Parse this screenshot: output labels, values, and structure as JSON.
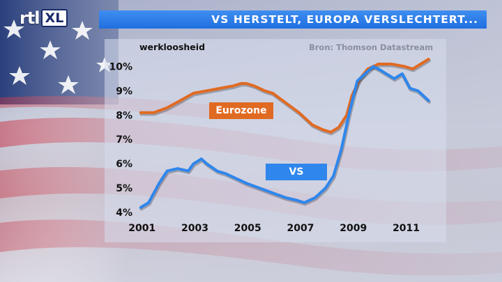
{
  "header": {
    "channel_logo_main": "rtl",
    "channel_logo_badge": "XL",
    "headline": "VS HERSTELT, EUROPA VERSLECHTERT..."
  },
  "colors": {
    "eurozone": "#e06a22",
    "vs": "#2f86ec",
    "title_bar": "#2a7ae8"
  },
  "chart_data": {
    "type": "line",
    "subtitle": "werkloosheid",
    "source": "Bron: Thomson Datastream",
    "ylim": [
      4,
      10.5
    ],
    "y_ticks": [
      "4%",
      "5%",
      "6%",
      "7%",
      "8%",
      "9%",
      "10%"
    ],
    "y_tick_values": [
      4,
      5,
      6,
      7,
      8,
      9,
      10
    ],
    "x_ticks": [
      "2001",
      "2003",
      "2005",
      "2007",
      "2009",
      "2011"
    ],
    "x_tick_values": [
      2001,
      2003,
      2005,
      2007,
      2009,
      2011
    ],
    "xlim": [
      2000.9,
      2012.2
    ],
    "grid": false,
    "series": [
      {
        "name": "Eurozone",
        "x": [
          2001.0,
          2001.5,
          2002.0,
          2002.5,
          2003.0,
          2003.5,
          2004.0,
          2004.5,
          2004.8,
          2005.0,
          2005.3,
          2005.7,
          2006.0,
          2006.5,
          2007.0,
          2007.5,
          2007.9,
          2008.2,
          2008.5,
          2008.8,
          2009.0,
          2009.3,
          2009.6,
          2010.0,
          2010.5,
          2011.0,
          2011.3,
          2011.6,
          2011.9
        ],
        "values": [
          8.1,
          8.1,
          8.3,
          8.6,
          8.9,
          9.0,
          9.1,
          9.2,
          9.3,
          9.3,
          9.2,
          9.0,
          8.9,
          8.5,
          8.1,
          7.6,
          7.4,
          7.3,
          7.5,
          8.0,
          8.8,
          9.5,
          9.9,
          10.1,
          10.1,
          10.0,
          9.9,
          10.1,
          10.3
        ]
      },
      {
        "name": "VS",
        "x": [
          2001.0,
          2001.3,
          2001.7,
          2002.0,
          2002.4,
          2002.8,
          2003.0,
          2003.3,
          2003.5,
          2003.9,
          2004.2,
          2004.6,
          2005.0,
          2005.5,
          2006.0,
          2006.5,
          2006.9,
          2007.2,
          2007.6,
          2008.0,
          2008.3,
          2008.6,
          2008.9,
          2009.2,
          2009.5,
          2009.8,
          2010.0,
          2010.3,
          2010.6,
          2010.9,
          2011.2,
          2011.5,
          2011.9
        ],
        "values": [
          4.2,
          4.4,
          5.2,
          5.7,
          5.8,
          5.7,
          6.0,
          6.2,
          6.0,
          5.7,
          5.6,
          5.4,
          5.2,
          5.0,
          4.8,
          4.6,
          4.5,
          4.4,
          4.6,
          5.0,
          5.5,
          6.6,
          8.1,
          9.4,
          9.7,
          10.0,
          9.9,
          9.7,
          9.5,
          9.7,
          9.1,
          9.0,
          8.6
        ]
      }
    ]
  }
}
